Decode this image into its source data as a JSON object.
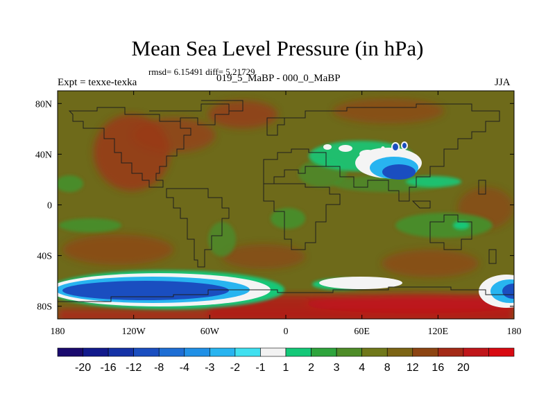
{
  "map": {
    "title": "Mean Sea Level Pressure (in hPa)",
    "stats": "rmsd= 6.15491 diff= 5.21729",
    "experiment": "Expt = texxe-texka",
    "subtitle": "019_5_MaBP - 000_0_MaBP",
    "season": "JJA"
  },
  "axes": {
    "y_ticks": [
      {
        "label": "80N",
        "lat": 80
      },
      {
        "label": "40N",
        "lat": 40
      },
      {
        "label": "0",
        "lat": 0
      },
      {
        "label": "40S",
        "lat": -40
      },
      {
        "label": "80S",
        "lat": -80
      }
    ],
    "x_ticks": [
      {
        "label": "180",
        "lon": -180
      },
      {
        "label": "120W",
        "lon": -120
      },
      {
        "label": "60W",
        "lon": -60
      },
      {
        "label": "0",
        "lon": 0
      },
      {
        "label": "60E",
        "lon": 60
      },
      {
        "label": "120E",
        "lon": 120
      },
      {
        "label": "180",
        "lon": 180
      }
    ],
    "lon_range": [
      -180,
      180
    ],
    "lat_range": [
      -90,
      90
    ]
  },
  "colorbar": {
    "colors": [
      "#1a0a6e",
      "#121a8c",
      "#1432a6",
      "#1a4ec0",
      "#1e6ed4",
      "#2090e6",
      "#28b4f0",
      "#40e0f0",
      "#f2f2f2",
      "#14c878",
      "#2ea43c",
      "#4e8c28",
      "#70781a",
      "#7c6414",
      "#8c4412",
      "#a42a16",
      "#c0161a",
      "#d80a12"
    ],
    "labels": [
      "-20",
      "-16",
      "-12",
      "-8",
      "-4",
      "-3",
      "-2",
      "-1",
      "1",
      "2",
      "3",
      "4",
      "8",
      "12",
      "16",
      "20"
    ]
  },
  "colors": {
    "background_field": "#6e6a1a",
    "high_red": "#9a3a18",
    "strong_red": "#b01e18",
    "green": "#4a8c2c",
    "bright_green": "#14c878",
    "white": "#f4f4f4",
    "cyan": "#28b4f0",
    "blue": "#1a4ec0",
    "coast": "#1e1e1e"
  }
}
